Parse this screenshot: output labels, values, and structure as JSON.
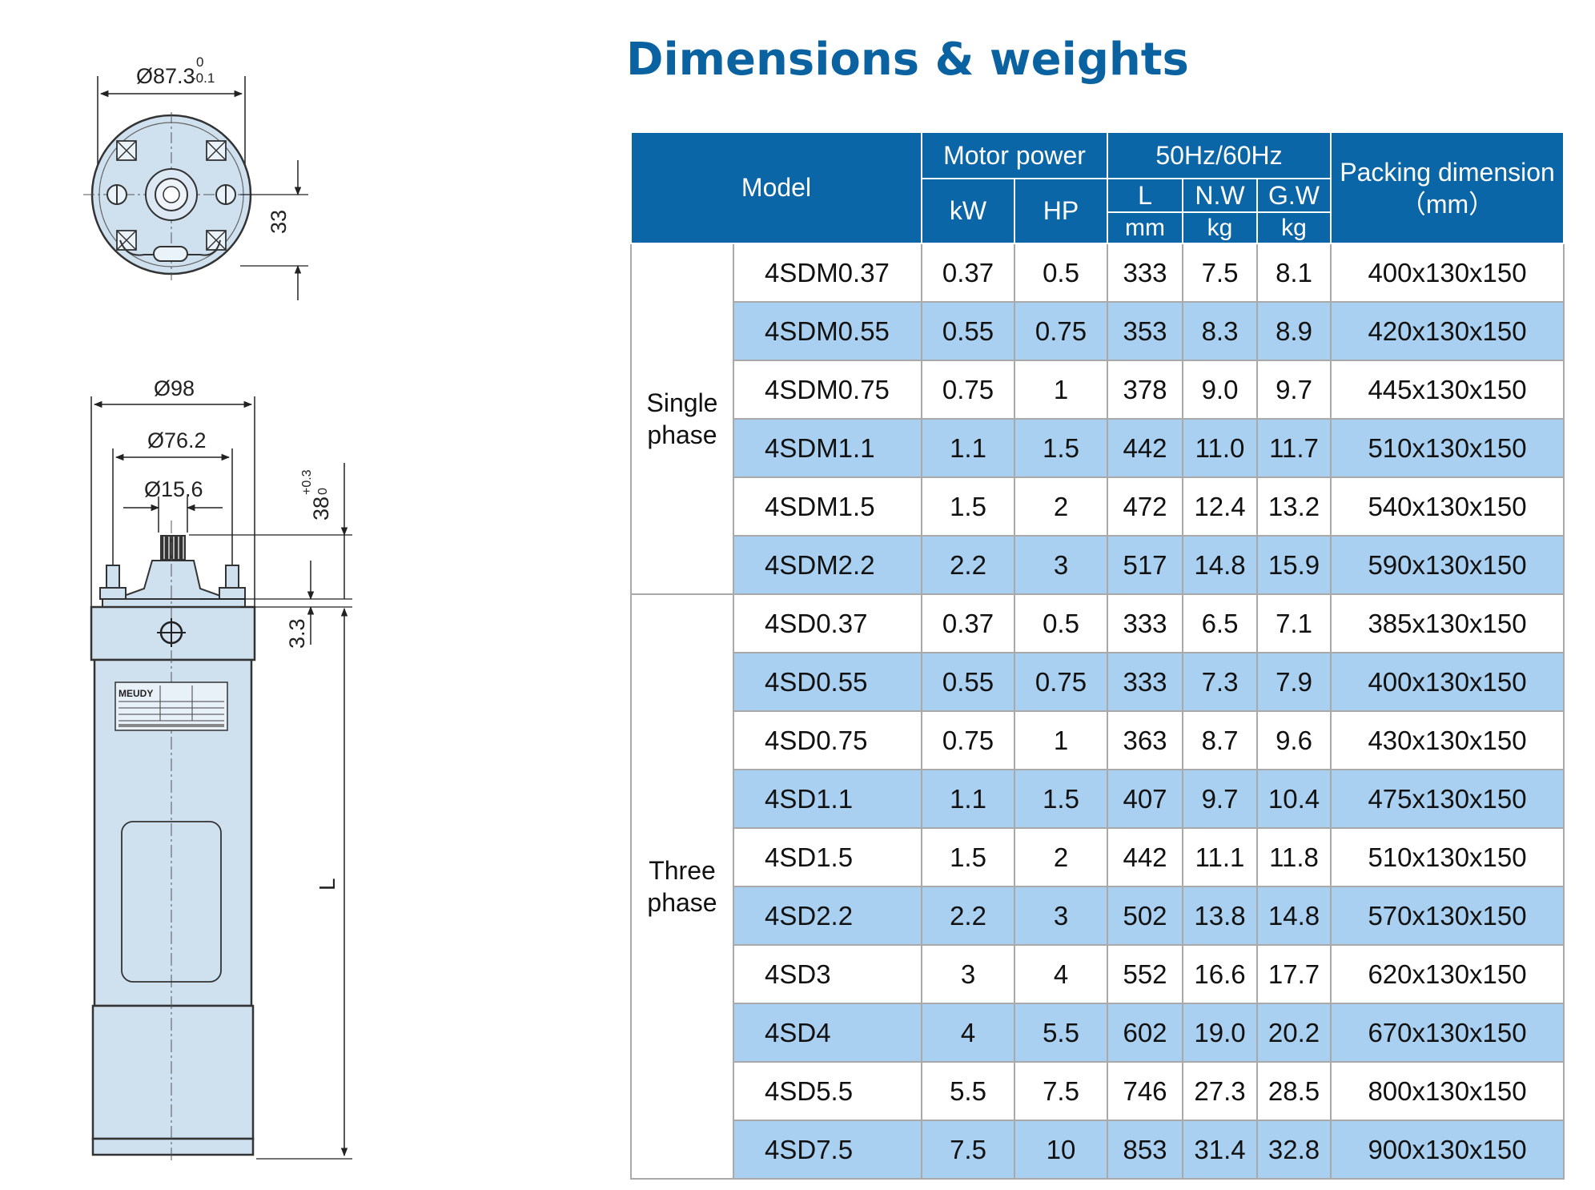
{
  "title": "Dimensions & weights",
  "drawing": {
    "top_diameter": "Ø87.3",
    "top_tol_upper": "0",
    "top_tol_lower": "-0.1",
    "offset": "33",
    "body_diameter": "Ø98",
    "flange_diameter": "Ø76.2",
    "shaft_diameter": "Ø15.6",
    "shaft_length": "38",
    "shaft_tol_upper": "+0.3",
    "shaft_tol_lower": "0",
    "gap": "3.3",
    "length_label": "L",
    "nameplate_brand": "MEUDY"
  },
  "table": {
    "headers": {
      "model": "Model",
      "motor_power": "Motor power",
      "kw": "kW",
      "hp": "HP",
      "freq": "50Hz/60Hz",
      "l": "L",
      "nw": "N.W",
      "gw": "G.W",
      "mm": "mm",
      "kg_nw": "kg",
      "kg_gw": "kg",
      "packing_line1": "Packing dimension",
      "packing_line2": "（mm）"
    },
    "groups": {
      "single_line1": "Single",
      "single_line2": "phase",
      "three_line1": "Three",
      "three_line2": "phase"
    },
    "rows": [
      {
        "model": "4SDM0.37",
        "kw": "0.37",
        "hp": "0.5",
        "l": "333",
        "nw": "7.5",
        "gw": "8.1",
        "packing": "400x130x150"
      },
      {
        "model": "4SDM0.55",
        "kw": "0.55",
        "hp": "0.75",
        "l": "353",
        "nw": "8.3",
        "gw": "8.9",
        "packing": "420x130x150"
      },
      {
        "model": "4SDM0.75",
        "kw": "0.75",
        "hp": "1",
        "l": "378",
        "nw": "9.0",
        "gw": "9.7",
        "packing": "445x130x150"
      },
      {
        "model": "4SDM1.1",
        "kw": "1.1",
        "hp": "1.5",
        "l": "442",
        "nw": "11.0",
        "gw": "11.7",
        "packing": "510x130x150"
      },
      {
        "model": "4SDM1.5",
        "kw": "1.5",
        "hp": "2",
        "l": "472",
        "nw": "12.4",
        "gw": "13.2",
        "packing": "540x130x150"
      },
      {
        "model": "4SDM2.2",
        "kw": "2.2",
        "hp": "3",
        "l": "517",
        "nw": "14.8",
        "gw": "15.9",
        "packing": "590x130x150"
      },
      {
        "model": "4SD0.37",
        "kw": "0.37",
        "hp": "0.5",
        "l": "333",
        "nw": "6.5",
        "gw": "7.1",
        "packing": "385x130x150"
      },
      {
        "model": "4SD0.55",
        "kw": "0.55",
        "hp": "0.75",
        "l": "333",
        "nw": "7.3",
        "gw": "7.9",
        "packing": "400x130x150"
      },
      {
        "model": "4SD0.75",
        "kw": "0.75",
        "hp": "1",
        "l": "363",
        "nw": "8.7",
        "gw": "9.6",
        "packing": "430x130x150"
      },
      {
        "model": "4SD1.1",
        "kw": "1.1",
        "hp": "1.5",
        "l": "407",
        "nw": "9.7",
        "gw": "10.4",
        "packing": "475x130x150"
      },
      {
        "model": "4SD1.5",
        "kw": "1.5",
        "hp": "2",
        "l": "442",
        "nw": "11.1",
        "gw": "11.8",
        "packing": "510x130x150"
      },
      {
        "model": "4SD2.2",
        "kw": "2.2",
        "hp": "3",
        "l": "502",
        "nw": "13.8",
        "gw": "14.8",
        "packing": "570x130x150"
      },
      {
        "model": "4SD3",
        "kw": "3",
        "hp": "4",
        "l": "552",
        "nw": "16.6",
        "gw": "17.7",
        "packing": "620x130x150"
      },
      {
        "model": "4SD4",
        "kw": "4",
        "hp": "5.5",
        "l": "602",
        "nw": "19.0",
        "gw": "20.2",
        "packing": "670x130x150"
      },
      {
        "model": "4SD5.5",
        "kw": "5.5",
        "hp": "7.5",
        "l": "746",
        "nw": "27.3",
        "gw": "28.5",
        "packing": "800x130x150"
      },
      {
        "model": "4SD7.5",
        "kw": "7.5",
        "hp": "10",
        "l": "853",
        "nw": "31.4",
        "gw": "32.8",
        "packing": "900x130x150"
      }
    ]
  },
  "colors": {
    "header_blue": "#0b66a8",
    "row_alt": "#a9d0f0",
    "title_blue": "#0a62a0",
    "motor_body": "#cfe0ef"
  }
}
